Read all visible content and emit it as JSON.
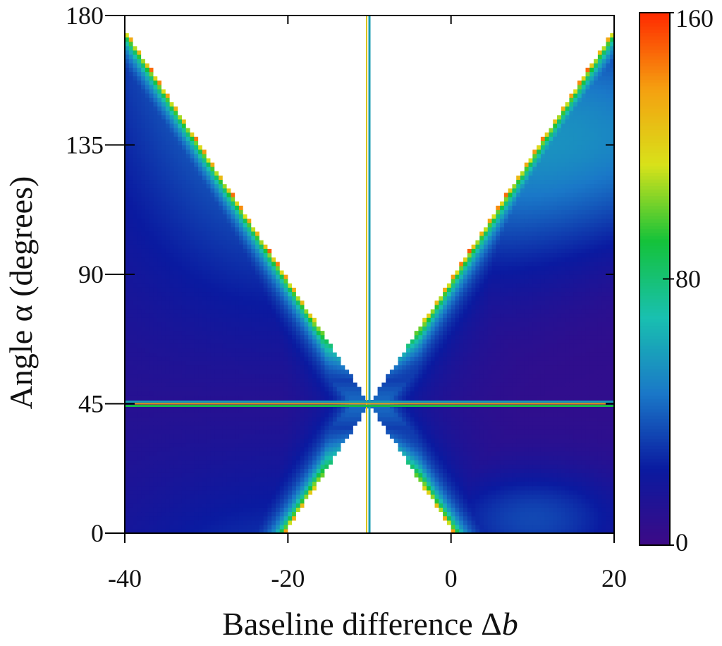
{
  "chart_data": {
    "type": "heatmap",
    "title": "",
    "xlabel": "Baseline difference Δb",
    "xlabel_parts": {
      "text": "Baseline difference Δ",
      "italic": "b"
    },
    "ylabel": "Angle α (degrees)",
    "xlim": [
      -40,
      20
    ],
    "ylim": [
      0,
      180
    ],
    "x_ticks": [
      -40,
      -20,
      0,
      20
    ],
    "x_tick_labels": [
      "-40",
      "-20",
      "0",
      "20"
    ],
    "y_ticks": [
      0,
      45,
      90,
      135,
      180
    ],
    "y_tick_labels": [
      "0",
      "45",
      "90",
      "135",
      "180"
    ],
    "colorbar": {
      "range": [
        0,
        160
      ],
      "ticks": [
        0,
        80,
        160
      ],
      "tick_labels": [
        "0",
        "80",
        "160"
      ],
      "colormap": [
        "#3d0a86",
        "#0a1aa0",
        "#1a78c8",
        "#19c0b0",
        "#14c23a",
        "#d8e21a",
        "#f5a010",
        "#ff2a00"
      ]
    },
    "singular_lines": {
      "x": -10,
      "y": 45
    },
    "saturated_region_color": "#ffffff",
    "grid": false,
    "legend": "none"
  }
}
